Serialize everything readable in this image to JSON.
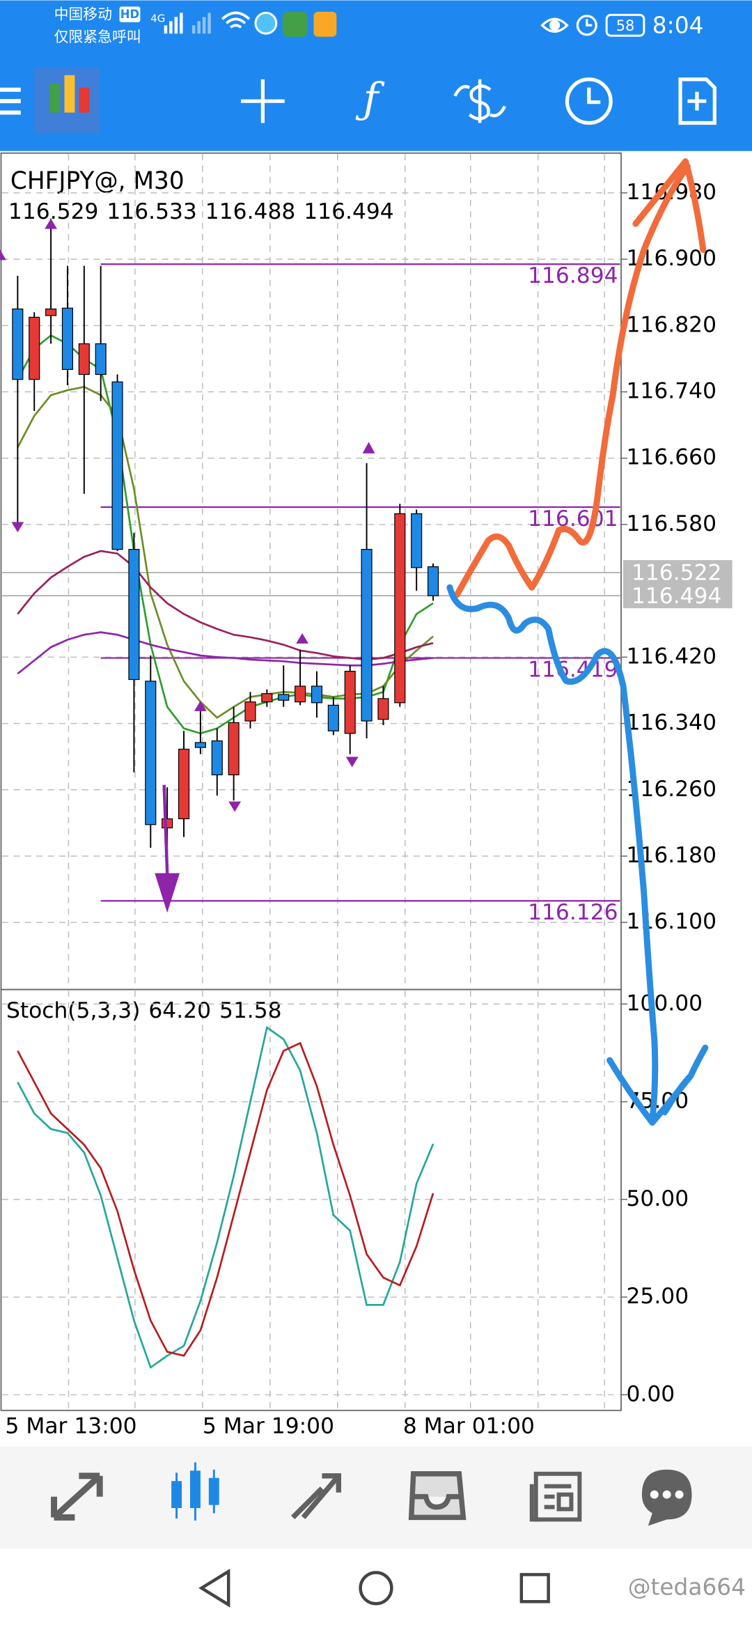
{
  "status_bar": {
    "carrier": "中国移动",
    "carrier_badge": "HD",
    "emergency": "仅限紧急呼叫",
    "network": "4G",
    "battery": "58",
    "time": "8:04"
  },
  "watermark": "@teda664",
  "chart_data": [
    {
      "type": "candlestick",
      "title": "CHFJPY@, M30",
      "open": [
        116.84,
        116.755,
        116.832,
        116.841,
        116.761,
        116.798,
        116.752,
        116.55,
        116.391,
        116.214,
        116.225,
        116.317,
        116.319,
        116.278,
        116.343,
        116.366,
        116.375,
        116.366,
        116.385,
        116.362,
        116.328,
        116.55,
        116.345,
        116.365,
        116.593,
        116.529
      ],
      "high": [
        116.88,
        116.836,
        116.949,
        116.892,
        116.892,
        116.892,
        116.761,
        116.57,
        116.422,
        116.263,
        116.331,
        116.356,
        116.334,
        116.36,
        116.378,
        116.381,
        116.41,
        116.429,
        116.403,
        116.372,
        116.41,
        116.654,
        116.385,
        116.605,
        116.598,
        116.533
      ],
      "low": [
        116.573,
        116.717,
        116.798,
        116.748,
        116.617,
        116.729,
        116.548,
        116.281,
        116.19,
        116.121,
        116.203,
        116.303,
        116.253,
        116.247,
        116.334,
        116.36,
        116.36,
        116.362,
        116.347,
        116.326,
        116.303,
        116.322,
        116.338,
        116.36,
        116.5,
        116.488
      ],
      "close": [
        116.755,
        116.83,
        116.84,
        116.767,
        116.798,
        116.761,
        116.55,
        116.393,
        116.218,
        116.225,
        116.309,
        116.311,
        116.278,
        116.341,
        116.366,
        116.376,
        116.368,
        116.385,
        116.365,
        116.331,
        116.403,
        116.343,
        116.37,
        116.593,
        116.528,
        116.494
      ],
      "up_color": "#e53935",
      "down_color": "#1e88e5",
      "series": [
        {
          "color": "#2e9d2e",
          "values": [
            116.755,
            116.792,
            116.808,
            116.798,
            116.78,
            116.767,
            116.686,
            116.548,
            116.435,
            116.36,
            116.334,
            116.328,
            116.334,
            116.347,
            116.36,
            116.366,
            116.372,
            116.375,
            116.372,
            116.37,
            116.37,
            116.372,
            116.378,
            116.435,
            116.472,
            116.485
          ]
        },
        {
          "color": "#6b8e23",
          "values": [
            116.673,
            116.711,
            116.736,
            116.742,
            116.746,
            116.736,
            116.711,
            116.623,
            116.497,
            116.435,
            116.391,
            116.366,
            116.347,
            116.36,
            116.372,
            116.375,
            116.378,
            116.377,
            116.375,
            116.372,
            116.375,
            116.376,
            116.385,
            116.41,
            116.428,
            116.445
          ]
        },
        {
          "color": "#9c1f5a",
          "values": [
            116.472,
            116.497,
            116.516,
            116.529,
            116.541,
            116.548,
            116.545,
            116.529,
            116.504,
            116.485,
            116.472,
            116.462,
            116.454,
            116.447,
            116.444,
            116.44,
            116.435,
            116.428,
            116.425,
            116.421,
            116.419,
            116.417,
            116.419,
            116.425,
            116.432,
            116.437
          ]
        },
        {
          "color": "#8e24aa",
          "values": [
            116.4,
            116.416,
            116.432,
            116.441,
            116.447,
            116.45,
            116.447,
            116.441,
            116.435,
            116.43,
            116.426,
            116.422,
            116.42,
            116.419,
            116.417,
            116.416,
            116.415,
            116.413,
            116.412,
            116.411,
            116.41,
            116.41,
            116.412,
            116.415,
            116.417,
            116.419
          ]
        }
      ],
      "levels": [
        {
          "value": 116.894,
          "label": "116.894"
        },
        {
          "value": 116.601,
          "label": "116.601"
        },
        {
          "value": 116.419,
          "label": "116.419"
        },
        {
          "value": 116.126,
          "label": "116.126"
        }
      ],
      "price_labels": [
        {
          "value": 116.522,
          "label": "116.522"
        },
        {
          "value": 116.494,
          "label": "116.494"
        }
      ],
      "ylim": [
        116.019,
        117.028
      ],
      "yticks": [
        {
          "value": 116.98,
          "label": "116.980"
        },
        {
          "value": 116.9,
          "label": "116.900"
        },
        {
          "value": 116.82,
          "label": "116.820"
        },
        {
          "value": 116.74,
          "label": "116.740"
        },
        {
          "value": 116.66,
          "label": "116.660"
        },
        {
          "value": 116.58,
          "label": "116.580"
        },
        {
          "value": 116.42,
          "label": "116.420"
        },
        {
          "value": 116.34,
          "label": "116.340"
        },
        {
          "value": 116.26,
          "label": "116.260"
        },
        {
          "value": 116.18,
          "label": "116.180"
        },
        {
          "value": 116.1,
          "label": "116.100"
        }
      ],
      "xtick_labels": [
        "5 Mar 13:00",
        "5 Mar 19:00",
        "8 Mar 01:00"
      ],
      "grid": true
    },
    {
      "type": "line",
      "title": "Stoch(5,3,3)",
      "value_labels": [
        "64.20",
        "51.58"
      ],
      "series": [
        {
          "color": "#26a69a",
          "values": [
            80,
            72,
            68,
            67,
            62,
            51,
            35,
            19,
            7,
            10,
            12.5,
            24,
            39,
            56,
            75,
            94,
            91,
            83,
            67,
            46,
            42,
            23,
            23,
            34,
            54,
            64.2
          ]
        },
        {
          "color": "#b71c1c",
          "values": [
            88,
            80,
            72,
            68,
            64,
            58,
            47,
            32,
            19,
            11,
            10,
            16.5,
            30,
            46,
            62,
            78,
            88,
            90,
            79,
            64,
            51,
            36,
            30,
            28,
            38,
            51.58
          ]
        }
      ],
      "ylim": [
        -4,
        103.7
      ],
      "yticks": [
        {
          "value": 100,
          "label": "100.00"
        },
        {
          "value": 75,
          "label": "75.00"
        },
        {
          "value": 50,
          "label": "50.00"
        },
        {
          "value": 25,
          "label": "25.00"
        },
        {
          "value": 0,
          "label": "0.00"
        }
      ],
      "grid": true
    }
  ]
}
